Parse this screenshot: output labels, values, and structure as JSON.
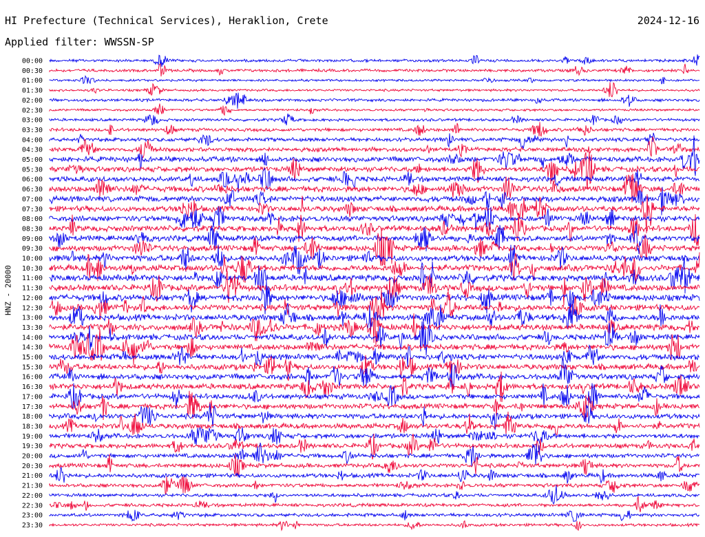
{
  "header": {
    "title": "HI Prefecture (Technical Services), Heraklion, Crete",
    "date": "2024-12-16",
    "filter": "Applied filter: WWSSN-SP"
  },
  "channel_label": "HNZ - 20000",
  "colors": {
    "odd": "#0000ee",
    "even": "#ee0033"
  },
  "chart_data": {
    "type": "line",
    "title": "HI Prefecture (Technical Services), Heraklion, Crete",
    "subtitle": "Applied filter: WWSSN-SP",
    "ylabel": "HNZ - 20000",
    "xlabel": "",
    "grid": false,
    "legend": "none",
    "rows": [
      {
        "label": "00:00",
        "level": 0.3,
        "color": "blue"
      },
      {
        "label": "00:30",
        "level": 0.3,
        "color": "red"
      },
      {
        "label": "01:00",
        "level": 0.2,
        "color": "blue"
      },
      {
        "label": "01:30",
        "level": 0.2,
        "color": "red"
      },
      {
        "label": "02:00",
        "level": 0.3,
        "color": "blue"
      },
      {
        "label": "02:30",
        "level": 0.2,
        "color": "red"
      },
      {
        "label": "03:00",
        "level": 0.3,
        "color": "blue"
      },
      {
        "label": "03:30",
        "level": 0.4,
        "color": "red"
      },
      {
        "label": "04:00",
        "level": 0.5,
        "color": "blue"
      },
      {
        "label": "04:30",
        "level": 0.6,
        "color": "red"
      },
      {
        "label": "05:00",
        "level": 0.8,
        "color": "blue"
      },
      {
        "label": "05:30",
        "level": 0.8,
        "color": "red"
      },
      {
        "label": "06:00",
        "level": 0.8,
        "color": "blue"
      },
      {
        "label": "06:30",
        "level": 0.9,
        "color": "red"
      },
      {
        "label": "07:00",
        "level": 0.9,
        "color": "blue"
      },
      {
        "label": "07:30",
        "level": 0.9,
        "color": "red"
      },
      {
        "label": "08:00",
        "level": 0.9,
        "color": "blue"
      },
      {
        "label": "08:30",
        "level": 0.9,
        "color": "red"
      },
      {
        "label": "09:00",
        "level": 0.9,
        "color": "blue"
      },
      {
        "label": "09:30",
        "level": 0.9,
        "color": "red"
      },
      {
        "label": "10:00",
        "level": 1.0,
        "color": "blue"
      },
      {
        "label": "10:30",
        "level": 1.0,
        "color": "red"
      },
      {
        "label": "11:00",
        "level": 1.0,
        "color": "blue"
      },
      {
        "label": "11:30",
        "level": 1.0,
        "color": "red"
      },
      {
        "label": "12:00",
        "level": 1.0,
        "color": "blue"
      },
      {
        "label": "12:30",
        "level": 1.0,
        "color": "red"
      },
      {
        "label": "13:00",
        "level": 1.0,
        "color": "blue"
      },
      {
        "label": "13:30",
        "level": 1.0,
        "color": "red"
      },
      {
        "label": "14:00",
        "level": 0.9,
        "color": "blue"
      },
      {
        "label": "14:30",
        "level": 0.9,
        "color": "red"
      },
      {
        "label": "15:00",
        "level": 0.9,
        "color": "blue"
      },
      {
        "label": "15:30",
        "level": 0.9,
        "color": "red"
      },
      {
        "label": "16:00",
        "level": 0.9,
        "color": "blue"
      },
      {
        "label": "16:30",
        "level": 0.9,
        "color": "red"
      },
      {
        "label": "17:00",
        "level": 0.8,
        "color": "blue"
      },
      {
        "label": "17:30",
        "level": 0.8,
        "color": "red"
      },
      {
        "label": "18:00",
        "level": 0.8,
        "color": "blue"
      },
      {
        "label": "18:30",
        "level": 0.8,
        "color": "red"
      },
      {
        "label": "19:00",
        "level": 0.7,
        "color": "blue"
      },
      {
        "label": "19:30",
        "level": 0.7,
        "color": "red"
      },
      {
        "label": "20:00",
        "level": 0.6,
        "color": "blue"
      },
      {
        "label": "20:30",
        "level": 0.6,
        "color": "red"
      },
      {
        "label": "21:00",
        "level": 0.6,
        "color": "blue"
      },
      {
        "label": "21:30",
        "level": 0.5,
        "color": "red"
      },
      {
        "label": "22:00",
        "level": 0.4,
        "color": "blue"
      },
      {
        "label": "22:30",
        "level": 0.4,
        "color": "red"
      },
      {
        "label": "23:00",
        "level": 0.4,
        "color": "blue"
      },
      {
        "label": "23:30",
        "level": 0.3,
        "color": "red"
      }
    ]
  }
}
